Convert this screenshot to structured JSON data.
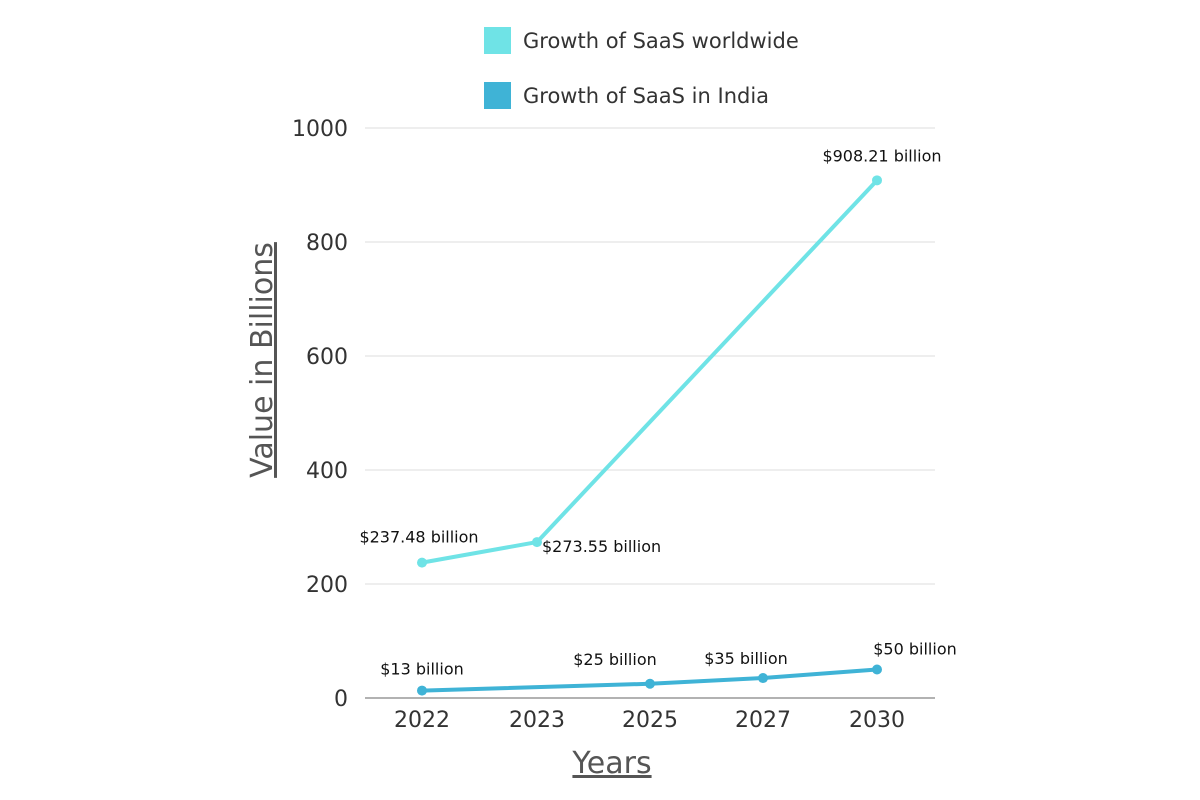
{
  "chart_data": {
    "type": "line",
    "categories": [
      "2022",
      "2023",
      "2025",
      "2027",
      "2030"
    ],
    "series": [
      {
        "name": "Growth of SaaS worldwide",
        "color": "#6fe3e6",
        "values": [
          237.48,
          273.55,
          null,
          null,
          908.21
        ],
        "labels": [
          "$237.48 billion",
          "$273.55 billion",
          "",
          "",
          "$908.21 billion"
        ]
      },
      {
        "name": "Growth of SaaS in India",
        "color": "#3fb3d6",
        "values": [
          13,
          null,
          25,
          35,
          50
        ],
        "labels": [
          "$13 billion",
          "",
          "$25 billion",
          "$35 billion",
          "$50 billion"
        ]
      }
    ],
    "xlabel": "Years",
    "ylabel": "Value in Billions",
    "ylim": [
      0,
      1000
    ],
    "yticks": [
      "0",
      "200",
      "400",
      "600",
      "800",
      "1000"
    ],
    "grid": true,
    "legend_position": "top"
  }
}
